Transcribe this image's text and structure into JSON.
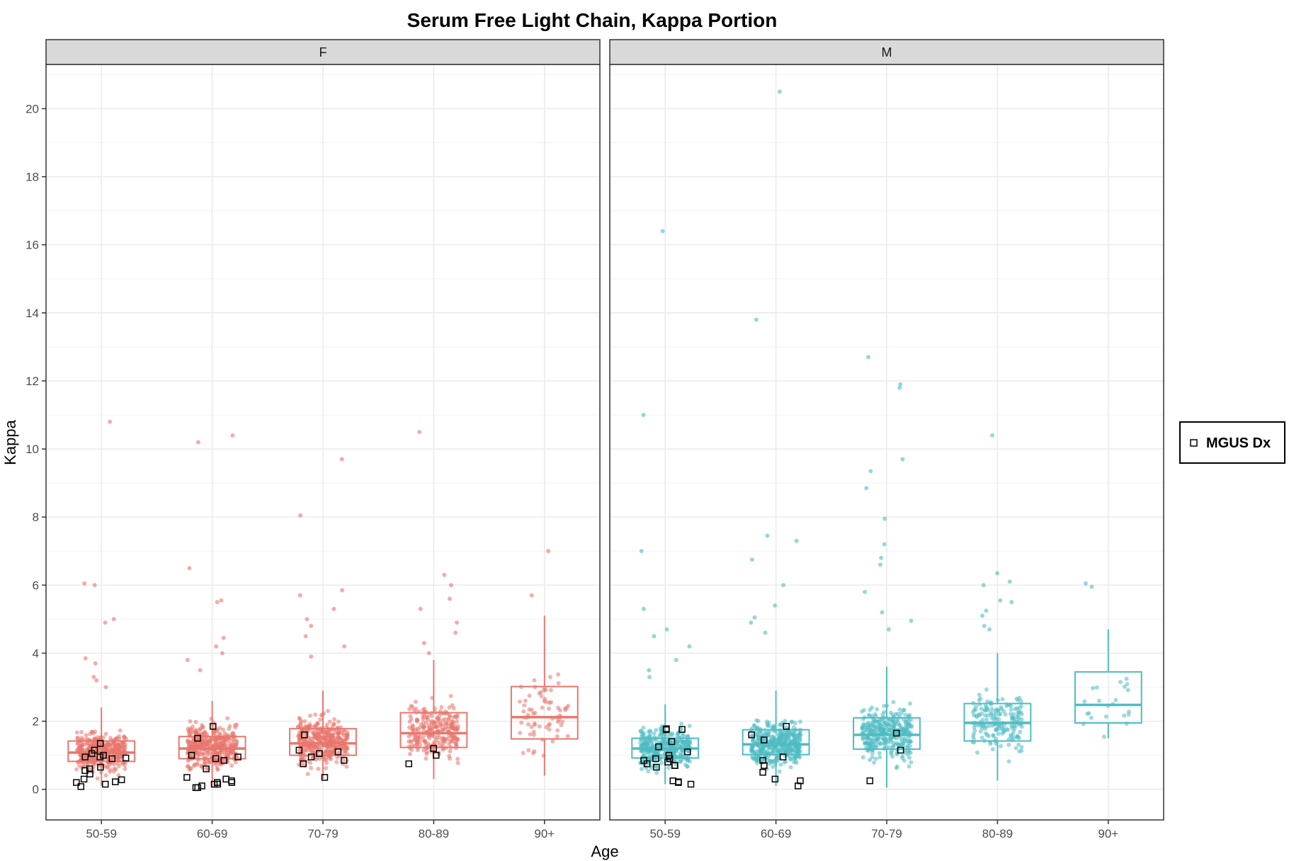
{
  "chart_data": {
    "type": "boxplot-jitter",
    "title": "Serum Free Light Chain, Kappa Portion",
    "xlabel": "Age",
    "ylabel": "Kappa",
    "ylim": [
      -0.9,
      21.3
    ],
    "yticks": [
      0,
      2,
      4,
      6,
      8,
      10,
      12,
      14,
      16,
      18,
      20
    ],
    "categories": [
      "50-59",
      "60-69",
      "70-79",
      "80-89",
      "90+"
    ],
    "legend": {
      "position": "right",
      "entries": [
        {
          "label": "MGUS Dx",
          "shape": "open-square"
        }
      ]
    },
    "grid": true,
    "facets": [
      {
        "label": "F",
        "color": "#E8776E",
        "groups": [
          {
            "category": "50-59",
            "box": {
              "q1": 0.82,
              "median": 1.08,
              "q3": 1.42,
              "whisker_low": 0.1,
              "whisker_high": 2.4
            },
            "count": 380,
            "center": 1.1,
            "spread": 0.45,
            "outliers": [
              10.8,
              6.05,
              6.0,
              5.0,
              4.9,
              3.85,
              3.7,
              3.3,
              3.2,
              3.0
            ],
            "mgus": [
              0.3,
              0.22,
              1.05,
              1.15,
              0.95,
              0.9,
              1.35,
              0.65,
              0.55,
              0.15,
              0.2,
              0.6,
              0.45,
              0.28,
              1.0,
              0.95,
              0.92,
              0.08
            ]
          },
          {
            "category": "60-69",
            "box": {
              "q1": 0.9,
              "median": 1.2,
              "q3": 1.55,
              "whisker_low": 0.05,
              "whisker_high": 2.6
            },
            "count": 420,
            "center": 1.25,
            "spread": 0.5,
            "outliers": [
              10.4,
              10.2,
              6.5,
              5.55,
              5.5,
              4.45,
              4.2,
              4.0,
              3.8,
              3.5
            ],
            "mgus": [
              0.05,
              0.15,
              0.2,
              0.85,
              0.9,
              0.95,
              1.0,
              1.5,
              0.6,
              0.35,
              0.25,
              0.2,
              0.1,
              0.05,
              1.85,
              0.15,
              0.3
            ]
          },
          {
            "category": "70-79",
            "box": {
              "q1": 1.0,
              "median": 1.35,
              "q3": 1.78,
              "whisker_low": 0.3,
              "whisker_high": 2.9
            },
            "count": 400,
            "center": 1.4,
            "spread": 0.5,
            "outliers": [
              9.7,
              8.05,
              5.85,
              5.7,
              5.3,
              5.0,
              4.8,
              4.5,
              4.2,
              3.9
            ],
            "mgus": [
              1.6,
              0.85,
              1.1,
              1.05,
              1.15,
              0.75,
              0.95,
              0.35
            ]
          },
          {
            "category": "80-89",
            "box": {
              "q1": 1.23,
              "median": 1.65,
              "q3": 2.25,
              "whisker_low": 0.3,
              "whisker_high": 3.8
            },
            "count": 260,
            "center": 1.75,
            "spread": 0.65,
            "outliers": [
              10.5,
              6.3,
              6.0,
              5.6,
              5.3,
              4.9,
              4.6,
              4.3,
              4.0
            ],
            "mgus": [
              1.0,
              1.2,
              0.75
            ]
          },
          {
            "category": "90+",
            "box": {
              "q1": 1.48,
              "median": 2.12,
              "q3": 3.02,
              "whisker_low": 0.4,
              "whisker_high": 5.1
            },
            "count": 70,
            "center": 2.2,
            "spread": 0.9,
            "outliers": [
              7.0,
              5.7
            ],
            "mgus": []
          }
        ]
      },
      {
        "label": "M",
        "color": "#4FBCC2",
        "groups": [
          {
            "category": "50-59",
            "box": {
              "q1": 0.92,
              "median": 1.2,
              "q3": 1.5,
              "whisker_low": 0.15,
              "whisker_high": 2.5
            },
            "count": 360,
            "center": 1.2,
            "spread": 0.45,
            "outliers": [
              16.4,
              11.0,
              7.0,
              5.3,
              4.7,
              4.5,
              4.2,
              3.8,
              3.5,
              3.3
            ],
            "mgus": [
              1.75,
              1.78,
              1.76,
              1.1,
              0.9,
              0.85,
              0.75,
              0.7,
              1.4,
              1.25,
              0.25,
              0.2,
              0.15,
              0.22,
              1.0,
              0.9,
              0.8,
              0.7,
              0.65
            ]
          },
          {
            "category": "60-69",
            "box": {
              "q1": 1.02,
              "median": 1.32,
              "q3": 1.75,
              "whisker_low": 0.1,
              "whisker_high": 2.9
            },
            "count": 420,
            "center": 1.35,
            "spread": 0.5,
            "outliers": [
              20.5,
              13.8,
              7.45,
              7.3,
              6.75,
              6.0,
              5.4,
              5.05,
              4.9,
              4.6
            ],
            "mgus": [
              1.6,
              1.85,
              1.45,
              0.95,
              0.7,
              0.5,
              0.3,
              0.25,
              0.1,
              0.85
            ]
          },
          {
            "category": "70-79",
            "box": {
              "q1": 1.18,
              "median": 1.6,
              "q3": 2.1,
              "whisker_low": 0.05,
              "whisker_high": 3.6
            },
            "count": 330,
            "center": 1.65,
            "spread": 0.6,
            "outliers": [
              12.7,
              11.9,
              11.8,
              9.7,
              9.35,
              8.85,
              7.95,
              7.2,
              6.8,
              6.6,
              5.8,
              5.2,
              4.95,
              4.7
            ],
            "mgus": [
              1.65,
              1.15,
              0.25
            ]
          },
          {
            "category": "80-89",
            "box": {
              "q1": 1.42,
              "median": 1.95,
              "q3": 2.52,
              "whisker_low": 0.25,
              "whisker_high": 4.0
            },
            "count": 170,
            "center": 2.0,
            "spread": 0.65,
            "outliers": [
              10.4,
              6.35,
              6.1,
              6.0,
              5.55,
              5.5,
              5.25,
              5.1,
              4.8,
              4.7
            ],
            "mgus": []
          },
          {
            "category": "90+",
            "box": {
              "q1": 1.95,
              "median": 2.48,
              "q3": 3.45,
              "whisker_low": 1.5,
              "whisker_high": 4.7
            },
            "count": 22,
            "center": 2.5,
            "spread": 0.7,
            "outliers": [
              6.05,
              5.95
            ],
            "mgus": []
          }
        ]
      }
    ]
  }
}
